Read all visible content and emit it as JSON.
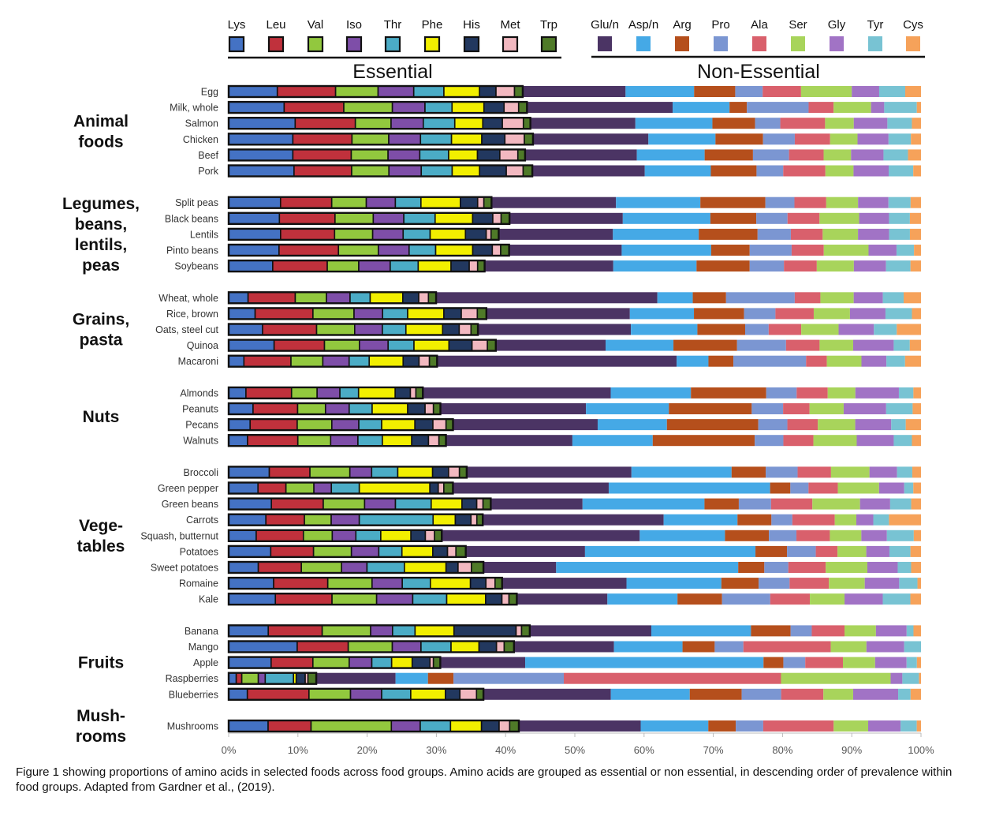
{
  "caption": "Figure 1 showing proportions of amino acids in selected foods across food groups. Amino acids are grouped as essential or non essential, in descending order of prevalence within food groups. Adapted from Gardner et al., (2019).",
  "chart_data": {
    "type": "bar",
    "orientation": "horizontal",
    "stacked": "percent",
    "xlim": [
      0,
      100
    ],
    "x_ticks": [
      "0%",
      "10%",
      "20%",
      "30%",
      "40%",
      "50%",
      "60%",
      "70%",
      "80%",
      "90%",
      "100%"
    ],
    "legend_groups": [
      {
        "label": "Essential",
        "position": "top-left"
      },
      {
        "label": "Non-Essential",
        "position": "top-right"
      }
    ],
    "series": [
      {
        "name": "Lys",
        "group": "essential",
        "color": "#4472C4"
      },
      {
        "name": "Leu",
        "group": "essential",
        "color": "#C0313C"
      },
      {
        "name": "Val",
        "group": "essential",
        "color": "#92C83E"
      },
      {
        "name": "Iso",
        "group": "essential",
        "color": "#7E4EA8"
      },
      {
        "name": "Thr",
        "group": "essential",
        "color": "#4BACC6"
      },
      {
        "name": "Phe",
        "group": "essential",
        "color": "#F2EF00"
      },
      {
        "name": "His",
        "group": "essential",
        "color": "#22385F"
      },
      {
        "name": "Met",
        "group": "essential",
        "color": "#F2B8C0"
      },
      {
        "name": "Trp",
        "group": "essential",
        "color": "#4F7A28"
      },
      {
        "name": "Glu/n",
        "group": "non-essential",
        "color": "#4B3464"
      },
      {
        "name": "Asp/n",
        "group": "non-essential",
        "color": "#45A9E6"
      },
      {
        "name": "Arg",
        "group": "non-essential",
        "color": "#B54F1C"
      },
      {
        "name": "Pro",
        "group": "non-essential",
        "color": "#7B96D2"
      },
      {
        "name": "Ala",
        "group": "non-essential",
        "color": "#D9606C"
      },
      {
        "name": "Ser",
        "group": "non-essential",
        "color": "#A8D45B"
      },
      {
        "name": "Gly",
        "group": "non-essential",
        "color": "#A173C5"
      },
      {
        "name": "Tyr",
        "group": "non-essential",
        "color": "#78C3D3"
      },
      {
        "name": "Cys",
        "group": "non-essential",
        "color": "#F6A25A"
      }
    ],
    "groups": [
      {
        "name": "Animal foods",
        "foods": [
          {
            "name": "Egg",
            "values": [
              7.1,
              8.5,
              6.2,
              5.2,
              4.4,
              5.2,
              2.4,
              2.7,
              1.2,
              15.0,
              10.0,
              6.0,
              4.0,
              5.6,
              7.4,
              4.0,
              3.8,
              2.3
            ]
          },
          {
            "name": "Milk, whole",
            "values": [
              8.0,
              8.6,
              7.0,
              4.7,
              3.9,
              4.6,
              2.9,
              2.1,
              1.2,
              21.0,
              8.2,
              2.5,
              8.9,
              3.6,
              5.4,
              1.9,
              4.7,
              0.6
            ]
          },
          {
            "name": "Salmon",
            "values": [
              9.5,
              8.6,
              5.1,
              4.6,
              4.5,
              4.0,
              2.8,
              3.0,
              1.0,
              15.0,
              11.0,
              6.1,
              3.6,
              6.4,
              4.1,
              4.8,
              3.5,
              1.3
            ]
          },
          {
            "name": "Chicken",
            "values": [
              8.9,
              8.2,
              5.1,
              4.4,
              4.3,
              4.2,
              3.2,
              2.7,
              1.2,
              16.0,
              9.3,
              6.6,
              4.4,
              4.9,
              3.8,
              4.3,
              3.1,
              1.4
            ]
          },
          {
            "name": "Beef",
            "values": [
              8.9,
              8.1,
              5.1,
              4.4,
              4.0,
              4.0,
              3.1,
              2.5,
              1.0,
              15.5,
              9.4,
              6.7,
              5.0,
              4.8,
              3.8,
              4.5,
              3.4,
              1.8
            ]
          },
          {
            "name": "Pork",
            "values": [
              9.3,
              8.2,
              5.3,
              4.6,
              4.4,
              3.9,
              3.8,
              2.4,
              1.3,
              16.0,
              9.4,
              6.5,
              3.8,
              6.0,
              4.0,
              5.0,
              3.5,
              1.1
            ]
          }
        ]
      },
      {
        "name": "Legumes, beans, lentils, peas",
        "foods": [
          {
            "name": "Split peas",
            "values": [
              7.5,
              7.4,
              5.0,
              4.2,
              3.7,
              5.7,
              2.5,
              0.9,
              1.1,
              18.0,
              12.2,
              9.4,
              4.2,
              4.6,
              4.6,
              4.4,
              3.2,
              1.5
            ]
          },
          {
            "name": "Black beans",
            "values": [
              7.3,
              8.0,
              5.5,
              4.4,
              4.5,
              5.4,
              2.9,
              1.2,
              1.2,
              16.3,
              12.6,
              6.6,
              4.5,
              4.6,
              5.7,
              4.3,
              3.0,
              1.6
            ]
          },
          {
            "name": "Lentils",
            "values": [
              7.5,
              7.8,
              5.5,
              4.4,
              3.9,
              5.1,
              3.0,
              0.7,
              1.1,
              16.5,
              12.4,
              8.5,
              4.8,
              4.6,
              5.1,
              4.5,
              3.0,
              1.6
            ]
          },
          {
            "name": "Pinto beans",
            "values": [
              7.2,
              8.5,
              5.7,
              4.4,
              3.8,
              5.3,
              2.8,
              1.2,
              1.2,
              16.1,
              12.8,
              5.5,
              6.0,
              4.6,
              6.4,
              4.0,
              2.5,
              1.0
            ]
          },
          {
            "name": "Soybeans",
            "values": [
              6.3,
              7.8,
              4.5,
              4.5,
              4.0,
              4.7,
              2.6,
              1.2,
              1.0,
              18.4,
              11.9,
              7.6,
              4.9,
              4.7,
              5.3,
              4.6,
              3.5,
              1.5
            ]
          }
        ]
      },
      {
        "name": "Grains, pasta",
        "foods": [
          {
            "name": "Wheat, whole",
            "values": [
              2.8,
              6.8,
              4.5,
              3.4,
              2.9,
              4.7,
              2.3,
              1.4,
              1.1,
              31.9,
              5.1,
              4.8,
              9.9,
              3.7,
              4.8,
              4.2,
              3.0,
              2.5
            ]
          },
          {
            "name": "Rice, brown",
            "values": [
              3.8,
              8.3,
              5.9,
              4.1,
              3.6,
              5.2,
              2.5,
              2.3,
              1.3,
              20.6,
              9.2,
              7.2,
              4.5,
              5.5,
              5.2,
              5.1,
              3.8,
              1.3
            ]
          },
          {
            "name": "Oats, steel cut",
            "values": [
              4.9,
              7.8,
              5.5,
              4.0,
              3.4,
              5.3,
              2.4,
              1.7,
              1.0,
              22.1,
              9.6,
              6.9,
              3.4,
              4.7,
              5.4,
              5.1,
              3.3,
              3.5
            ]
          },
          {
            "name": "Quinoa",
            "values": [
              6.5,
              7.2,
              5.0,
              4.1,
              3.7,
              5.0,
              3.3,
              2.2,
              1.2,
              15.7,
              9.7,
              9.1,
              7.0,
              4.8,
              4.8,
              5.8,
              2.3,
              1.6
            ]
          },
          {
            "name": "Macaroni",
            "values": [
              2.2,
              6.8,
              4.6,
              3.8,
              2.9,
              4.9,
              2.3,
              1.5,
              1.1,
              34.6,
              4.6,
              3.6,
              10.5,
              3.0,
              5.0,
              3.6,
              2.7,
              2.3
            ]
          }
        ]
      },
      {
        "name": "Nuts",
        "foods": [
          {
            "name": "Almonds",
            "values": [
              2.5,
              6.6,
              3.7,
              3.3,
              2.7,
              5.3,
              2.2,
              0.8,
              1.0,
              27.2,
              11.6,
              10.9,
              4.4,
              4.5,
              4.0,
              6.3,
              2.1,
              1.1
            ]
          },
          {
            "name": "Peanuts",
            "values": [
              3.5,
              6.4,
              4.0,
              3.4,
              3.3,
              5.1,
              2.5,
              1.2,
              1.0,
              20.9,
              11.9,
              11.9,
              4.5,
              3.8,
              4.9,
              6.1,
              3.8,
              1.2
            ]
          },
          {
            "name": "Pecans",
            "values": [
              3.1,
              6.8,
              5.0,
              3.9,
              3.3,
              4.8,
              2.6,
              1.9,
              1.0,
              20.9,
              10.0,
              13.2,
              4.2,
              4.4,
              5.4,
              5.2,
              2.1,
              2.2
            ]
          },
          {
            "name": "Walnuts",
            "values": [
              2.7,
              7.2,
              4.7,
              3.9,
              3.5,
              4.2,
              2.4,
              1.5,
              1.0,
              18.1,
              11.5,
              14.6,
              4.1,
              4.3,
              6.2,
              5.3,
              2.6,
              1.3
            ]
          }
        ]
      },
      {
        "name": "Vege-tables",
        "foods": [
          {
            "name": "Broccoli",
            "values": [
              5.6,
              5.6,
              5.5,
              3.0,
              3.6,
              4.8,
              2.2,
              1.5,
              1.0,
              22.7,
              13.8,
              4.7,
              4.4,
              4.6,
              5.3,
              3.8,
              2.1,
              1.2
            ]
          },
          {
            "name": "Green pepper",
            "values": [
              4.2,
              4.0,
              4.0,
              2.5,
              4.0,
              10.1,
              1.2,
              0.8,
              1.3,
              22.3,
              23.1,
              2.9,
              2.6,
              4.2,
              5.9,
              3.6,
              1.3,
              1.1
            ]
          },
          {
            "name": "Green beans",
            "values": [
              6.1,
              7.4,
              5.9,
              4.4,
              5.1,
              4.4,
              2.1,
              0.9,
              1.1,
              13.1,
              17.4,
              4.9,
              4.6,
              5.9,
              6.8,
              4.3,
              3.0,
              1.4
            ]
          },
          {
            "name": "Carrots",
            "values": [
              5.7,
              5.9,
              4.1,
              4.3,
              11.3,
              3.4,
              2.4,
              0.9,
              0.9,
              27.7,
              11.3,
              5.2,
              3.2,
              6.5,
              3.3,
              2.6,
              2.4,
              4.9
            ]
          },
          {
            "name": "Squash, butternut",
            "values": [
              4.2,
              7.2,
              4.4,
              3.6,
              3.8,
              4.6,
              2.2,
              1.4,
              1.1,
              30.2,
              13.0,
              6.7,
              4.2,
              5.1,
              4.8,
              3.9,
              4.1,
              1.1
            ]
          },
          {
            "name": "Potatoes",
            "values": [
              6.0,
              6.1,
              5.4,
              3.9,
              3.3,
              4.4,
              2.1,
              1.2,
              1.4,
              17.0,
              24.3,
              4.5,
              4.1,
              3.1,
              4.1,
              3.3,
              3.0,
              1.5
            ]
          },
          {
            "name": "Sweet potatoes",
            "values": [
              4.2,
              6.1,
              5.7,
              3.6,
              5.3,
              5.9,
              1.7,
              1.9,
              1.7,
              10.3,
              25.8,
              3.7,
              3.4,
              5.3,
              5.9,
              4.3,
              1.9,
              1.4
            ]
          },
          {
            "name": "Romaine",
            "values": [
              6.4,
              7.7,
              6.3,
              4.3,
              4.0,
              5.7,
              2.2,
              1.3,
              1.0,
              17.7,
              13.5,
              5.3,
              4.4,
              5.6,
              5.1,
              4.9,
              2.6,
              0.5
            ]
          },
          {
            "name": "Kale",
            "values": [
              6.6,
              8.0,
              6.3,
              5.1,
              4.8,
              5.5,
              2.3,
              1.0,
              1.1,
              12.8,
              9.9,
              6.3,
              6.8,
              5.6,
              4.9,
              5.4,
              3.9,
              1.5
            ]
          }
        ]
      },
      {
        "name": "Fruits",
        "foods": [
          {
            "name": "Banana",
            "values": [
              5.8,
              7.9,
              7.1,
              3.2,
              3.3,
              5.7,
              9.1,
              0.8,
              1.2,
              17.8,
              14.6,
              5.8,
              3.1,
              4.8,
              4.6,
              4.5,
              1.0,
              1.1
            ]
          },
          {
            "name": "Mango",
            "values": [
              9.8,
              7.3,
              6.3,
              4.1,
              4.3,
              4.0,
              2.5,
              1.1,
              1.4,
              14.3,
              9.8,
              4.6,
              4.1,
              12.5,
              5.1,
              5.4,
              2.4,
              0.0
            ]
          },
          {
            "name": "Apple",
            "values": [
              6.2,
              6.1,
              5.3,
              3.3,
              2.9,
              3.0,
              2.6,
              0.5,
              1.0,
              12.4,
              34.8,
              2.9,
              3.2,
              5.5,
              4.7,
              4.6,
              1.5,
              0.6
            ]
          },
          {
            "name": "Raspberries",
            "values": [
              1.1,
              0.8,
              2.4,
              1.0,
              4.1,
              0.4,
              1.3,
              0.4,
              1.2,
              11.5,
              4.7,
              3.7,
              16.0,
              31.5,
              15.9,
              1.7,
              2.4,
              0.3
            ]
          },
          {
            "name": "Blueberries",
            "values": [
              2.7,
              8.9,
              6.0,
              4.5,
              4.2,
              5.0,
              2.1,
              2.4,
              1.0,
              18.4,
              11.4,
              7.5,
              5.7,
              6.1,
              4.3,
              6.5,
              1.8,
              1.5
            ]
          }
        ]
      },
      {
        "name": "Mush-rooms",
        "foods": [
          {
            "name": "Mushrooms",
            "values": [
              5.6,
              6.1,
              11.4,
              4.1,
              4.3,
              4.4,
              2.5,
              1.5,
              1.3,
              17.3,
              9.6,
              3.9,
              3.9,
              10.0,
              4.9,
              4.6,
              2.3,
              0.6
            ]
          }
        ]
      }
    ],
    "essential_count": 9
  }
}
